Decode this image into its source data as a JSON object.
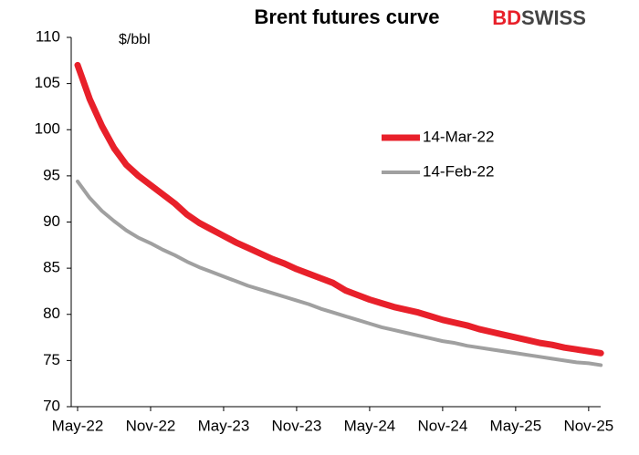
{
  "chart_data": {
    "type": "line",
    "title": "Brent futures curve",
    "annotation": "$/bbl",
    "brand": {
      "part1": "BD",
      "part2": "SWISS"
    },
    "categories": [
      "May-22",
      null,
      null,
      null,
      null,
      null,
      "Nov-22",
      null,
      null,
      null,
      null,
      null,
      "May-23",
      null,
      null,
      null,
      null,
      null,
      "Nov-23",
      null,
      null,
      null,
      null,
      null,
      "May-24",
      null,
      null,
      null,
      null,
      null,
      "Nov-24",
      null,
      null,
      null,
      null,
      null,
      "May-25",
      null,
      null,
      null,
      null,
      null,
      "Nov-25",
      null
    ],
    "series": [
      {
        "name": "14-Mar-22",
        "color": "#e8202a",
        "width": 7,
        "values": [
          107,
          103.3,
          100.4,
          98,
          96.2,
          95,
          94,
          93,
          92,
          90.8,
          89.9,
          89.2,
          88.5,
          87.8,
          87.2,
          86.6,
          86.0,
          85.5,
          84.9,
          84.4,
          83.9,
          83.4,
          82.6,
          82.1,
          81.6,
          81.2,
          80.8,
          80.5,
          80.2,
          79.8,
          79.4,
          79.1,
          78.8,
          78.4,
          78.1,
          77.8,
          77.5,
          77.2,
          76.9,
          76.7,
          76.4,
          76.2,
          76.0,
          75.8
        ]
      },
      {
        "name": "14-Feb-22",
        "color": "#a0a0a0",
        "width": 4,
        "values": [
          94.4,
          92.6,
          91.2,
          90.1,
          89.1,
          88.3,
          87.7,
          87.0,
          86.4,
          85.7,
          85.1,
          84.6,
          84.1,
          83.6,
          83.1,
          82.7,
          82.3,
          81.9,
          81.5,
          81.1,
          80.6,
          80.2,
          79.8,
          79.4,
          79.0,
          78.6,
          78.3,
          78.0,
          77.7,
          77.4,
          77.1,
          76.9,
          76.6,
          76.4,
          76.2,
          76.0,
          75.8,
          75.6,
          75.4,
          75.2,
          75.0,
          74.8,
          74.7,
          74.5
        ]
      }
    ],
    "ylim": [
      70,
      110
    ],
    "yticks": [
      70,
      75,
      80,
      85,
      90,
      95,
      100,
      105,
      110
    ],
    "grid": false
  }
}
